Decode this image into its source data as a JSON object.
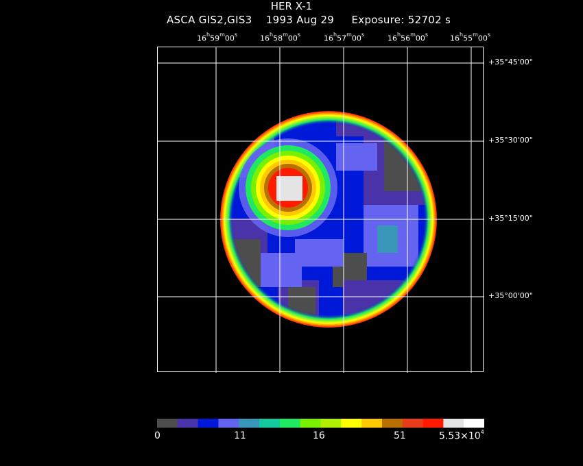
{
  "header": {
    "object": "HER X-1",
    "instrument": "ASCA GIS2,GIS3",
    "date": "1993 Aug 29",
    "exposure": "Exposure: 52702 s"
  },
  "ra_labels": [
    {
      "h": "16",
      "m": "59",
      "s": "00"
    },
    {
      "h": "16",
      "m": "58",
      "s": "00"
    },
    {
      "h": "16",
      "m": "57",
      "s": "00"
    },
    {
      "h": "16",
      "m": "56",
      "s": "00"
    },
    {
      "h": "16",
      "m": "55",
      "s": "00"
    }
  ],
  "dec_labels": [
    "+35°45'00\"",
    "+35°30'00\"",
    "+35°15'00\"",
    "+35°00'00\""
  ],
  "colorbar": {
    "colors": [
      "#4d4d4d",
      "#4a32a8",
      "#0018d8",
      "#6464f0",
      "#3896b8",
      "#14c8a0",
      "#20e860",
      "#78f000",
      "#b0f000",
      "#ffff00",
      "#ffc800",
      "#b87000",
      "#e83c1c",
      "#ff1a00",
      "#e4e4e4",
      "#ffffff"
    ],
    "ticks": [
      {
        "label": "0"
      },
      {
        "label": "11"
      },
      {
        "label": "16"
      },
      {
        "label": "51"
      },
      {
        "label": "5.53×10",
        "exp": "4"
      }
    ]
  }
}
